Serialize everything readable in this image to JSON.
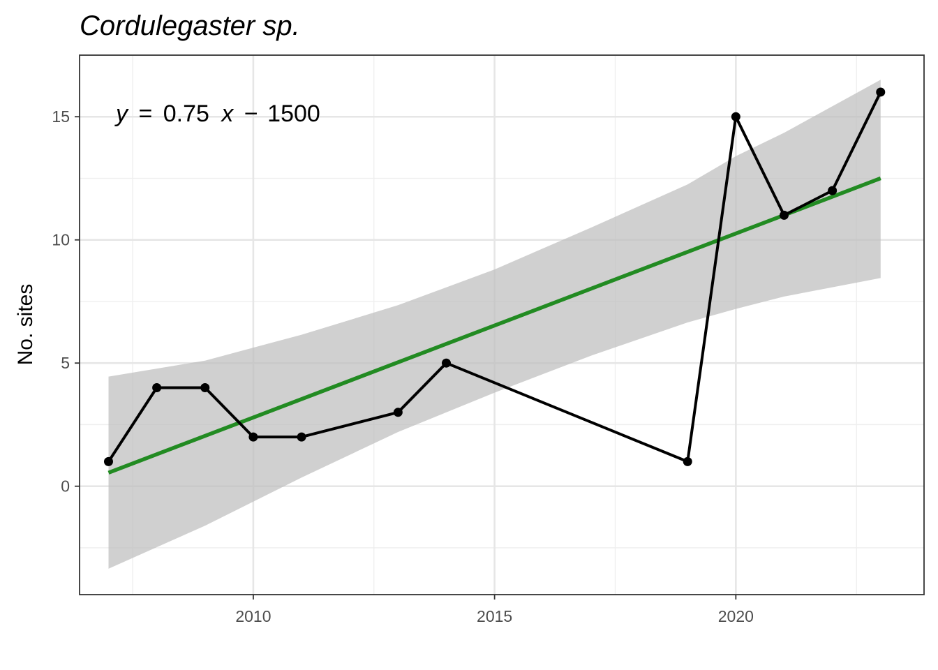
{
  "chart_data": {
    "type": "line",
    "title": "Cordulegaster sp.",
    "xlabel": "",
    "ylabel": "No. sites",
    "xlim": [
      2006.4,
      2023.9
    ],
    "ylim": [
      -4.4,
      17.5
    ],
    "x_ticks": [
      2010,
      2015,
      2020
    ],
    "x_tick_labels": [
      "2010",
      "2015",
      "2020"
    ],
    "y_ticks": [
      0,
      5,
      10,
      15
    ],
    "y_tick_labels": [
      "0",
      "5",
      "10",
      "15"
    ],
    "grid": true,
    "legend": "none",
    "annotation": {
      "equation": {
        "y_var": "y",
        "eq": "=",
        "slope": "0.75",
        "x_var": "x",
        "op": "−",
        "intercept": "1500"
      }
    },
    "series": [
      {
        "x": [
          2007,
          2008,
          2009,
          2010,
          2011,
          2013,
          2014,
          2019,
          2020,
          2021,
          2022,
          2023
        ],
        "values": [
          1,
          4,
          4,
          2,
          2,
          3,
          5,
          1,
          15,
          11,
          12,
          16
        ],
        "color": "#000000",
        "markers": true
      }
    ],
    "trend": {
      "type": "linear",
      "color": "#228b22",
      "x_range": [
        2007,
        2023
      ],
      "y_start": 0.55,
      "y_end": 12.5,
      "ci_color": "#bebebe",
      "ci": {
        "x": [
          2007,
          2009,
          2011,
          2013,
          2015,
          2017,
          2019,
          2020,
          2021,
          2023
        ],
        "lower": [
          -3.35,
          -1.6,
          0.35,
          2.2,
          3.8,
          5.3,
          6.65,
          7.2,
          7.7,
          8.45
        ],
        "upper": [
          4.45,
          5.1,
          6.15,
          7.35,
          8.8,
          10.5,
          12.25,
          13.4,
          14.35,
          16.5
        ]
      }
    }
  }
}
